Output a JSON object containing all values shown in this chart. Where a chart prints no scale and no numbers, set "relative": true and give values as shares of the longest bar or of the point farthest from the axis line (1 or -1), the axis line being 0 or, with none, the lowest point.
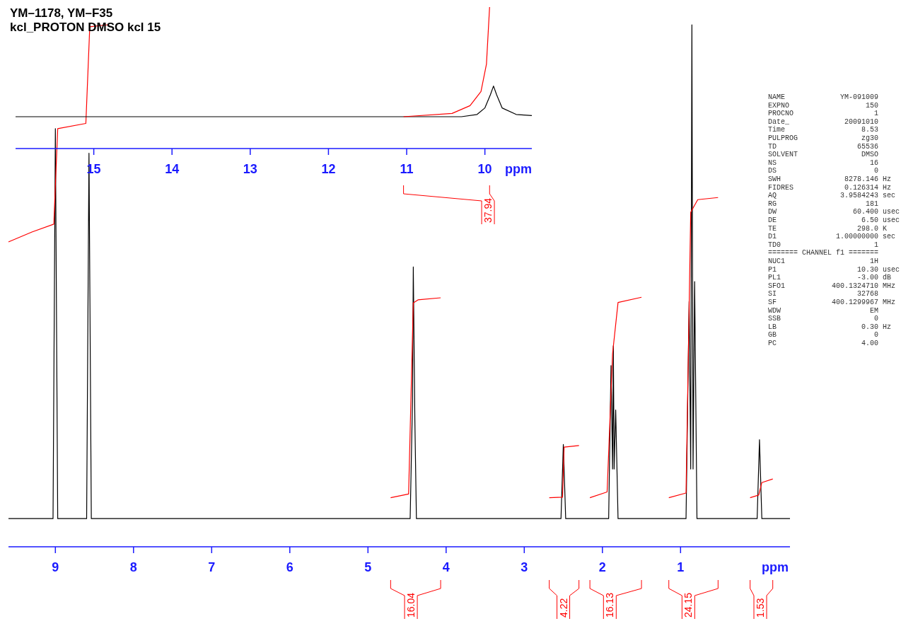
{
  "chart_data": [
    {
      "type": "line",
      "title": "YM–1178, YM–F35",
      "subtitle": "kcl_PROTON DMSO kcl 15",
      "relative": true,
      "xlim": [
        9.6,
        -0.4
      ],
      "xticks": [
        9,
        8,
        7,
        6,
        5,
        4,
        3,
        2,
        1
      ],
      "xlabel": "ppm",
      "series": [
        {
          "color": "#000000",
          "x": [
            9.6,
            9.05,
            9.03,
            9.0,
            8.97,
            8.6,
            8.57,
            8.54,
            4.46,
            4.43,
            4.42,
            4.4,
            4.38,
            2.53,
            2.5,
            2.47,
            1.92,
            1.89,
            1.87,
            1.86,
            1.85,
            1.83,
            1.8,
            0.93,
            0.89,
            0.87,
            0.855,
            0.84,
            0.82,
            0.79,
            0.02,
            -0.01,
            -0.04,
            -0.4
          ],
          "values": [
            0.054,
            0.054,
            0.054,
            0.801,
            0.054,
            0.054,
            0.754,
            0.054,
            0.054,
            0.281,
            0.536,
            0.243,
            0.054,
            0.054,
            0.196,
            0.054,
            0.054,
            0.347,
            0.149,
            0.385,
            0.149,
            0.262,
            0.054,
            0.054,
            0.47,
            0.149,
            1.0,
            0.149,
            0.508,
            0.054,
            0.054,
            0.205,
            0.054,
            0.054
          ]
        },
        {
          "color": "#ff0000",
          "x": [
            4.71,
            4.48,
            4.42,
            4.36,
            4.07
          ],
          "values": [
            0.094,
            0.101,
            0.467,
            0.473,
            0.477
          ]
        },
        {
          "color": "#ff0000",
          "x": [
            2.68,
            2.51,
            2.49,
            2.3
          ],
          "values": [
            0.094,
            0.095,
            0.191,
            0.194
          ]
        },
        {
          "color": "#ff0000",
          "x": [
            2.16,
            1.94,
            1.87,
            1.8,
            1.5
          ],
          "values": [
            0.094,
            0.105,
            0.37,
            0.468,
            0.478
          ]
        },
        {
          "color": "#ff0000",
          "x": [
            1.15,
            0.93,
            0.87,
            0.78,
            0.52
          ],
          "values": [
            0.094,
            0.103,
            0.641,
            0.665,
            0.669
          ]
        },
        {
          "color": "#ff0000",
          "x": [
            0.11,
            0.0,
            -0.04,
            -0.18
          ],
          "values": [
            0.094,
            0.099,
            0.123,
            0.13
          ]
        },
        {
          "color": "#ff0000",
          "x": [
            9.6,
            9.3,
            9.02,
            8.97,
            8.61,
            8.56,
            8.33
          ],
          "values": [
            0.584,
            0.603,
            0.618,
            0.801,
            0.811,
            0.996,
            1.0
          ]
        }
      ],
      "annotations": [
        "16.04",
        "4.22",
        "16.13",
        "24.15",
        "1.53"
      ]
    },
    {
      "type": "line",
      "relative": true,
      "xlim": [
        16.0,
        9.4
      ],
      "xticks": [
        15,
        14,
        13,
        12,
        11,
        10
      ],
      "xlabel": "ppm",
      "series": [
        {
          "color": "#000000",
          "x": [
            16.0,
            10.3,
            10.1,
            10.0,
            9.93,
            9.89,
            9.85,
            9.78,
            9.6,
            9.4
          ],
          "values": [
            0.225,
            0.225,
            0.241,
            0.287,
            0.38,
            0.442,
            0.38,
            0.287,
            0.241,
            0.233
          ]
        },
        {
          "color": "#ff0000",
          "x": [
            11.04,
            10.42,
            10.19,
            10.05,
            9.98,
            9.94
          ],
          "values": [
            0.225,
            0.248,
            0.303,
            0.403,
            0.597,
            1.0
          ]
        }
      ],
      "annotations": [
        "37.94"
      ]
    },
    {
      "type": "other",
      "annotations": [
        "NAME             YM-091009",
        "EXPNO                  150",
        "PROCNO                   1",
        "Date_             20091010",
        "Time                  8.53",
        "PULPROG               zg30",
        "TD                   65536",
        "SOLVENT               DMSO",
        "NS                      16",
        "DS                       0",
        "SWH               8278.146 Hz",
        "FIDRES            0.126314 Hz",
        "AQ               3.9584243 sec",
        "RG                     181",
        "DW                  60.400 usec",
        "DE                    6.50 usec",
        "TE                   298.0 K",
        "D1              1.00000000 sec",
        "TD0                      1",
        "======= CHANNEL f1 =======",
        "NUC1                    1H",
        "P1                   10.30 usec",
        "PL1                  -3.00 dB",
        "SFO1           400.1324710 MHz",
        "SI                   32768",
        "SF             400.1299967 MHz",
        "WDW                     EM",
        "SSB                      0",
        "LB                    0.30 Hz",
        "GB                       0",
        "PC                    4.00"
      ]
    }
  ]
}
